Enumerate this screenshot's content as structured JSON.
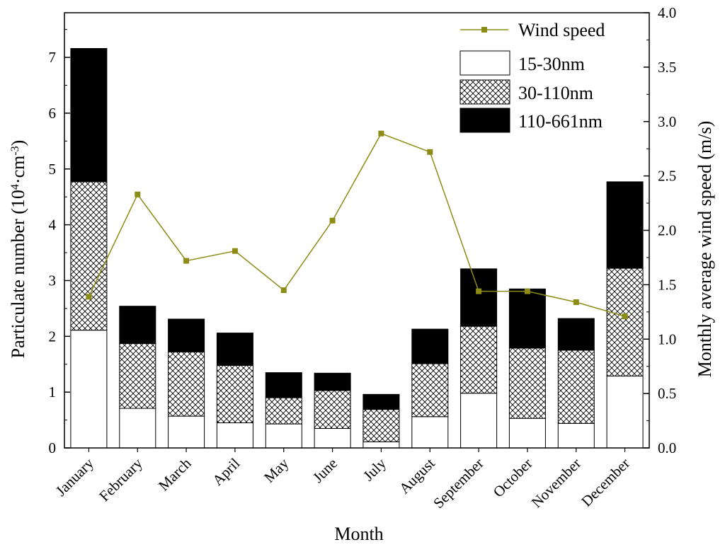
{
  "chart_data": {
    "type": "bar",
    "subtype": "stacked-bar-with-line-secondary-axis",
    "categories": [
      "January",
      "February",
      "March",
      "April",
      "May",
      "June",
      "July",
      "August",
      "September",
      "October",
      "November",
      "December"
    ],
    "series": [
      {
        "name": "15-30nm",
        "type": "bar",
        "pattern": "white",
        "values": [
          2.11,
          0.71,
          0.57,
          0.45,
          0.43,
          0.35,
          0.11,
          0.56,
          0.98,
          0.53,
          0.44,
          1.29
        ]
      },
      {
        "name": "30-110nm",
        "type": "bar",
        "pattern": "crosshatch",
        "values": [
          2.66,
          1.16,
          1.15,
          1.03,
          0.47,
          0.68,
          0.58,
          0.95,
          1.2,
          1.26,
          1.31,
          1.93
        ]
      },
      {
        "name": "110-661nm",
        "type": "bar",
        "pattern": "black",
        "values": [
          2.39,
          0.67,
          0.59,
          0.58,
          0.45,
          0.31,
          0.27,
          0.62,
          1.03,
          1.06,
          0.57,
          1.55
        ]
      },
      {
        "name": "Wind speed",
        "type": "line",
        "axis": "right",
        "color": "#8c8c14",
        "values": [
          1.39,
          2.33,
          1.72,
          1.81,
          1.45,
          2.09,
          2.89,
          2.72,
          1.44,
          1.44,
          1.34,
          1.21
        ]
      }
    ],
    "xlabel": "Month",
    "ylabel_left": "Particulate number (10⁴·cm⁻³)",
    "ylabel_right": "Monthly average wind speed (m/s)",
    "ylim_left": [
      0,
      7.8
    ],
    "ylim_right": [
      0,
      4.0
    ],
    "yticks_left": [
      "0",
      "1",
      "2",
      "3",
      "4",
      "5",
      "6",
      "7"
    ],
    "yticks_right": [
      "0.0",
      "0.5",
      "1.0",
      "1.5",
      "2.0",
      "2.5",
      "3.0",
      "3.5",
      "4.0"
    ],
    "legend_position": "top-right",
    "grid": false
  }
}
